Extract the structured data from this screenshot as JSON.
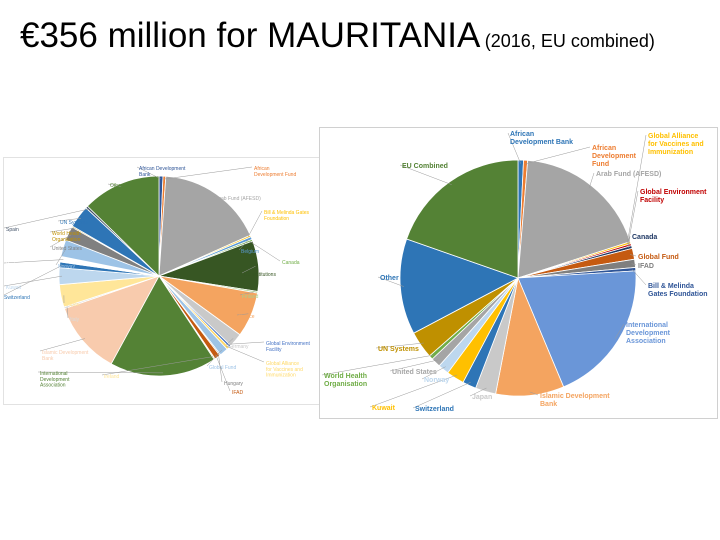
{
  "slide": {
    "title_main": "€356 million for MAURITANIA",
    "title_sub": "(2016, EU combined)"
  },
  "chart_data": [
    {
      "type": "pie",
      "title": "",
      "unit": "share of total (%)",
      "slices": [
        {
          "label": "African Development Bank",
          "value": 0.7,
          "color": "#2f5597"
        },
        {
          "label": "African Development Fund",
          "value": 0.5,
          "color": "#ed7d31"
        },
        {
          "label": "Arab Fund (AFESD)",
          "value": 19,
          "color": "#a5a5a5"
        },
        {
          "label": "Bill & Melinda Gates Foundation",
          "value": 0.3,
          "color": "#ffc000"
        },
        {
          "label": "Belgium",
          "value": 0.5,
          "color": "#5b9bd5"
        },
        {
          "label": "Canada",
          "value": 0.3,
          "color": "#70ad47"
        },
        {
          "label": "EU institutions",
          "value": 9,
          "color": "#375623"
        },
        {
          "label": "Finland",
          "value": 0.3,
          "color": "#a9d18e"
        },
        {
          "label": "France",
          "value": 8,
          "color": "#f4a460"
        },
        {
          "label": "Germany",
          "value": 2.5,
          "color": "#c9c9c9"
        },
        {
          "label": "Global Environment Facility",
          "value": 0.4,
          "color": "#4472c4"
        },
        {
          "label": "Global Alliance for Vaccines and Immunization",
          "value": 0.5,
          "color": "#ffd966"
        },
        {
          "label": "Global Fund",
          "value": 1.5,
          "color": "#9dc3e6"
        },
        {
          "label": "Hungary",
          "value": 0.2,
          "color": "#7f7f7f"
        },
        {
          "label": "IFAD",
          "value": 1.0,
          "color": "#c55a11"
        },
        {
          "label": "Ireland",
          "value": 0.2,
          "color": "#ffe699"
        },
        {
          "label": "International Development Association",
          "value": 19,
          "color": "#548235"
        },
        {
          "label": "Islamic Development Bank",
          "value": 13,
          "color": "#f8cbad"
        },
        {
          "label": "Italy",
          "value": 0.3,
          "color": "#dbdbdb"
        },
        {
          "label": "Japan",
          "value": 4,
          "color": "#ffe699"
        },
        {
          "label": "Kuwait",
          "value": 3,
          "color": "#bdd7ee"
        },
        {
          "label": "Switzerland",
          "value": 1,
          "color": "#2e75b6"
        },
        {
          "label": "Portugal",
          "value": 1,
          "color": "#ffffff"
        },
        {
          "label": "Norway",
          "value": 3,
          "color": "#9dc3e6"
        },
        {
          "label": "United States",
          "value": 2.5,
          "color": "#808080"
        },
        {
          "label": "World Health Organisation",
          "value": 0.2,
          "color": "#bf9000"
        },
        {
          "label": "UN Systems",
          "value": 4,
          "color": "#2e75b6"
        },
        {
          "label": "Spain",
          "value": 0.4,
          "color": "#44546a"
        },
        {
          "label": "Other",
          "value": 14,
          "color": "#548235"
        }
      ]
    },
    {
      "type": "pie",
      "title": "",
      "unit": "share of total (%)",
      "slices": [
        {
          "label": "African Development Bank",
          "value": 0.8,
          "color": "#2e75b6"
        },
        {
          "label": "African Development Fund",
          "value": 0.6,
          "color": "#ed7d31"
        },
        {
          "label": "Arab Fund (AFESD)",
          "value": 20,
          "color": "#a5a5a5"
        },
        {
          "label": "Global Alliance for Vaccines and Immunization",
          "value": 0.3,
          "color": "#ffc000"
        },
        {
          "label": "Global Environment Facility",
          "value": 0.3,
          "color": "#c00000"
        },
        {
          "label": "Canada",
          "value": 0.4,
          "color": "#1f3864"
        },
        {
          "label": "Global Fund",
          "value": 1.6,
          "color": "#c55a11"
        },
        {
          "label": "IFAD",
          "value": 1.2,
          "color": "#7f7f7f"
        },
        {
          "label": "Bill & Melinda Gates Foundation",
          "value": 0.5,
          "color": "#2f5597"
        },
        {
          "label": "International Development Association",
          "value": 21,
          "color": "#6a96d8"
        },
        {
          "label": "Islamic Development Bank",
          "value": 10,
          "color": "#f4a460"
        },
        {
          "label": "Japan",
          "value": 3,
          "color": "#c9c9c9"
        },
        {
          "label": "Switzerland",
          "value": 2,
          "color": "#2e75b6"
        },
        {
          "label": "Kuwait",
          "value": 2.6,
          "color": "#ffc000"
        },
        {
          "label": "Norway",
          "value": 1.6,
          "color": "#bdd7ee"
        },
        {
          "label": "United States",
          "value": 1.4,
          "color": "#a5a5a5"
        },
        {
          "label": "World Health Organisation",
          "value": 0.6,
          "color": "#70ad47"
        },
        {
          "label": "UN Systems",
          "value": 4,
          "color": "#bf9000"
        },
        {
          "label": "Other",
          "value": 14,
          "color": "#2e75b6"
        },
        {
          "label": "EU Combined",
          "value": 21,
          "color": "#548235"
        }
      ]
    }
  ]
}
